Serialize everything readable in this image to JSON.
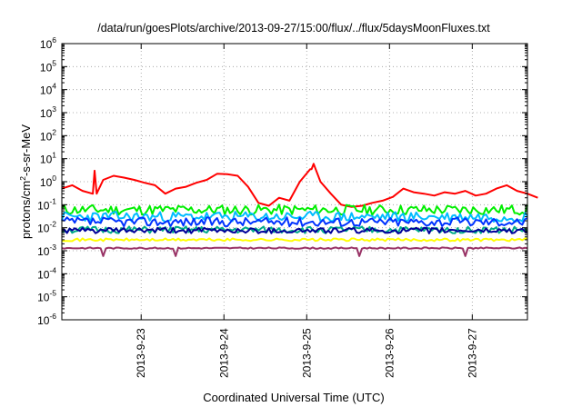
{
  "chart_data": {
    "type": "line",
    "title": "/data/run/goesPlots/archive/2013-09-27/15:00/flux/../flux/5daysMoonFluxes.txt",
    "xlabel": "Coordinated Universal Time (UTC)",
    "ylabel": {
      "base": "protons/cm",
      "sup": "2",
      "rest": "-s-sr-MeV"
    },
    "yscale": "log",
    "ylim": [
      1e-06,
      1000000.0
    ],
    "xlim": [
      "2013-09-22 01:00",
      "2013-09-27 16:00"
    ],
    "grid": true,
    "legend": "none",
    "y_ticks": [
      {
        "value": 1e-06,
        "exp": "-6"
      },
      {
        "value": 1e-05,
        "exp": "-5"
      },
      {
        "value": 0.0001,
        "exp": "-4"
      },
      {
        "value": 0.001,
        "exp": "-3"
      },
      {
        "value": 0.01,
        "exp": "-2"
      },
      {
        "value": 0.1,
        "exp": "-1"
      },
      {
        "value": 1.0,
        "exp": "0"
      },
      {
        "value": 10.0,
        "exp": "1"
      },
      {
        "value": 100.0,
        "exp": "2"
      },
      {
        "value": 1000.0,
        "exp": "3"
      },
      {
        "value": 10000.0,
        "exp": "4"
      },
      {
        "value": 100000.0,
        "exp": "5"
      },
      {
        "value": 1000000.0,
        "exp": "6"
      }
    ],
    "x_ticks": [
      "2013-9-23",
      "2013-9-24",
      "2013-9-25",
      "2013-9-26",
      "2013-9-27"
    ],
    "series": [
      {
        "color": "#ff0000",
        "x_hours": [
          0,
          3,
          6,
          9,
          12,
          15,
          18,
          21,
          24,
          27,
          30,
          33,
          36,
          39,
          42,
          45,
          48,
          51,
          54,
          57,
          60,
          63,
          66,
          69,
          72,
          75,
          78,
          81,
          84,
          87,
          90,
          93,
          96,
          99,
          102,
          105,
          108,
          111,
          114,
          117,
          120,
          123,
          126,
          129,
          132,
          135,
          138
        ],
        "values": [
          0.5,
          0.7,
          0.4,
          0.3,
          1.2,
          1.8,
          1.5,
          1.2,
          0.9,
          0.7,
          0.3,
          0.5,
          0.6,
          0.9,
          1.2,
          2.2,
          2.1,
          1.8,
          0.6,
          0.12,
          0.09,
          0.2,
          0.15,
          1.0,
          3.5,
          1.0,
          0.3,
          0.1,
          0.08,
          0.09,
          0.12,
          0.15,
          0.22,
          0.5,
          0.35,
          0.3,
          0.25,
          0.35,
          0.3,
          0.4,
          0.25,
          0.3,
          0.5,
          0.7,
          0.4,
          0.3,
          0.2
        ],
        "spikes": [
          {
            "x": 9.5,
            "value": 3.0
          },
          {
            "x": 73,
            "value": 6.0
          }
        ]
      },
      {
        "color": "#00ee00",
        "base": 0.06,
        "amp": 0.45,
        "seed": 11
      },
      {
        "color": "#00bbff",
        "base": 0.03,
        "amp": 0.45,
        "seed": 23
      },
      {
        "color": "#0033ff",
        "base": 0.018,
        "amp": 0.4,
        "seed": 37
      },
      {
        "color": "#00aa88",
        "base": 0.008,
        "amp": 0.3,
        "seed": 51
      },
      {
        "color": "#000099",
        "base": 0.0075,
        "amp": 0.25,
        "seed": 61
      },
      {
        "color": "#ffff00",
        "base": 0.003,
        "amp": 0.12,
        "seed": 71
      },
      {
        "color": "#993366",
        "base": 0.0013,
        "amp": 0.06,
        "seed": 83,
        "dips": [
          12,
          33,
          86,
          117
        ]
      }
    ]
  }
}
